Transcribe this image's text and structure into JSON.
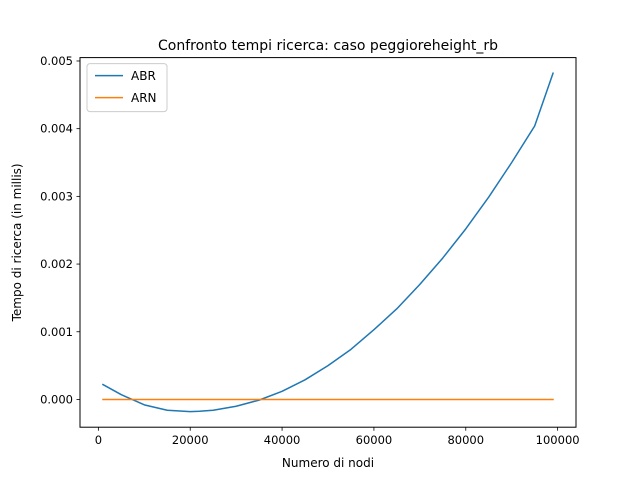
{
  "chart_data": {
    "type": "line",
    "title": "Confronto tempi ricerca: caso peggioreheight_rb",
    "xlabel": "Numero di nodi",
    "ylabel": "Tempo di ricerca (in millis)",
    "xlim": [
      -4000,
      104000
    ],
    "ylim": [
      -0.00041,
      0.00505
    ],
    "xticks": [
      0,
      20000,
      40000,
      60000,
      80000,
      100000
    ],
    "xtick_labels": [
      "0",
      "20000",
      "40000",
      "60000",
      "80000",
      "100000"
    ],
    "yticks": [
      0.0,
      0.001,
      0.002,
      0.003,
      0.004,
      0.005
    ],
    "ytick_labels": [
      "0.000",
      "0.001",
      "0.002",
      "0.003",
      "0.004",
      "0.005"
    ],
    "grid": false,
    "legend": "top-left",
    "series": [
      {
        "name": "ABR",
        "color": "#1f77b4",
        "x": [
          1000,
          5000,
          10000,
          15000,
          20000,
          22000,
          25000,
          30000,
          35000,
          40000,
          45000,
          50000,
          55000,
          60000,
          65000,
          70000,
          75000,
          80000,
          85000,
          90000,
          95000,
          99000
        ],
        "y": [
          0.00022,
          7e-05,
          -8e-05,
          -0.00016,
          -0.00018,
          -0.000175,
          -0.00016,
          -0.0001,
          -1e-05,
          0.00012,
          0.00029,
          0.0005,
          0.00074,
          0.00103,
          0.00134,
          0.0017,
          0.00209,
          0.00252,
          0.00299,
          0.0035,
          0.00404,
          0.00482
        ]
      },
      {
        "name": "ARN",
        "color": "#ff7f0e",
        "x": [
          1000,
          99000
        ],
        "y": [
          0.0,
          0.0
        ]
      }
    ]
  }
}
